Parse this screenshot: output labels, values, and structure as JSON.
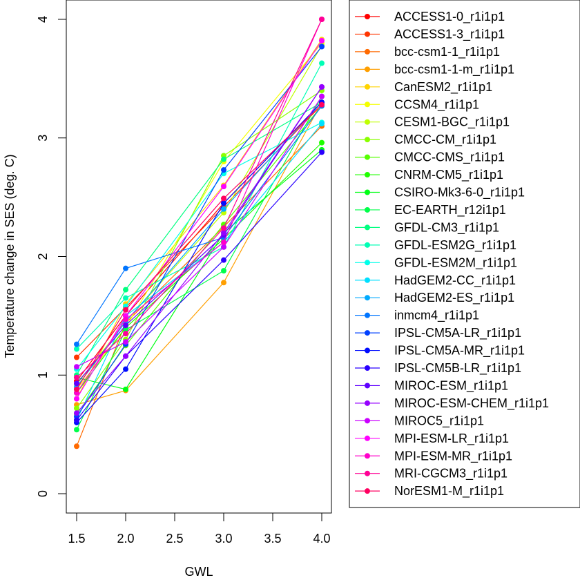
{
  "chart_data": {
    "type": "line",
    "title": "",
    "xlabel": "GWL",
    "ylabel": "Temperature change in SES (deg. C)",
    "x": [
      1.5,
      2.0,
      3.0,
      4.0
    ],
    "xlim": [
      1.4,
      4.1
    ],
    "ylim": [
      -0.1,
      4.15
    ],
    "xticks": [
      1.5,
      2.0,
      2.5,
      3.0,
      3.5,
      4.0
    ],
    "xtick_labels": [
      "1.5",
      "2.0",
      "2.5",
      "3.0",
      "3.5",
      "4.0"
    ],
    "yticks": [
      0,
      1,
      2,
      3,
      4
    ],
    "ytick_labels": [
      "0",
      "1",
      "2",
      "3",
      "4"
    ],
    "grid": false,
    "legend_position": "right",
    "series": [
      {
        "name": "ACCESS1-0_r1i1p1",
        "color": "#FF0000",
        "values": [
          0.95,
          1.5,
          2.45,
          3.3
        ]
      },
      {
        "name": "ACCESS1-3_r1i1p1",
        "color": "#FF3500",
        "values": [
          1.15,
          1.57,
          2.42,
          3.28
        ]
      },
      {
        "name": "bcc-csm1-1_r1i1p1",
        "color": "#FF6A00",
        "values": [
          0.4,
          1.44,
          2.25,
          3.1
        ]
      },
      {
        "name": "bcc-csm1-1-m_r1i1p1",
        "color": "#FF9F00",
        "values": [
          0.75,
          0.87,
          1.78,
          3.3
        ]
      },
      {
        "name": "CanESM2_r1i1p1",
        "color": "#FFD400",
        "values": [
          0.8,
          1.6,
          2.6,
          3.83
        ]
      },
      {
        "name": "CCSM4_r1i1p1",
        "color": "#F4FF00",
        "values": [
          0.88,
          1.4,
          2.8,
          3.8
        ]
      },
      {
        "name": "CESM1-BGC_r1i1p1",
        "color": "#BFFF00",
        "values": [
          0.92,
          1.45,
          2.37,
          3.78
        ]
      },
      {
        "name": "CMCC-CM_r1i1p1",
        "color": "#8AFF00",
        "values": [
          0.72,
          1.3,
          2.85,
          3.4
        ]
      },
      {
        "name": "CMCC-CMS_r1i1p1",
        "color": "#55FF00",
        "values": [
          0.67,
          1.25,
          2.27,
          3.27
        ]
      },
      {
        "name": "CNRM-CM5_r1i1p1",
        "color": "#20FF00",
        "values": [
          0.85,
          1.4,
          2.15,
          2.96
        ]
      },
      {
        "name": "CSIRO-Mk3-6-0_r1i1p1",
        "color": "#00FF15",
        "values": [
          0.98,
          0.88,
          2.2,
          2.9
        ]
      },
      {
        "name": "EC-EARTH_r12i1p1",
        "color": "#00FF4A",
        "values": [
          0.54,
          1.38,
          1.88,
          3.35
        ]
      },
      {
        "name": "GFDL-CM3_r1i1p1",
        "color": "#00FF80",
        "values": [
          1.0,
          1.72,
          2.82,
          3.3
        ]
      },
      {
        "name": "GFDL-ESM2G_r1i1p1",
        "color": "#00FFB5",
        "values": [
          1.22,
          1.65,
          2.08,
          3.63
        ]
      },
      {
        "name": "GFDL-ESM2M_r1i1p1",
        "color": "#00FFEA",
        "values": [
          1.05,
          1.58,
          2.7,
          3.13
        ]
      },
      {
        "name": "HadGEM2-CC_r1i1p1",
        "color": "#00DFFF",
        "values": [
          0.62,
          1.5,
          2.12,
          3.12
        ]
      },
      {
        "name": "HadGEM2-ES_r1i1p1",
        "color": "#00AAFF",
        "values": [
          0.9,
          1.45,
          2.4,
          3.3
        ]
      },
      {
        "name": "inmcm4_r1i1p1",
        "color": "#0075FF",
        "values": [
          1.26,
          1.9,
          2.16,
          3.27
        ]
      },
      {
        "name": "IPSL-CM5A-LR_r1i1p1",
        "color": "#0040FF",
        "values": [
          0.65,
          1.26,
          2.73,
          3.77
        ]
      },
      {
        "name": "IPSL-CM5A-MR_r1i1p1",
        "color": "#000BFF",
        "values": [
          0.6,
          1.05,
          2.45,
          3.3
        ]
      },
      {
        "name": "IPSL-CM5B-LR_r1i1p1",
        "color": "#2A00FF",
        "values": [
          0.62,
          1.16,
          1.97,
          2.88
        ]
      },
      {
        "name": "MIROC-ESM_r1i1p1",
        "color": "#5F00FF",
        "values": [
          0.93,
          1.42,
          2.18,
          3.43
        ]
      },
      {
        "name": "MIROC-ESM-CHEM_r1i1p1",
        "color": "#9500FF",
        "values": [
          0.68,
          1.16,
          2.2,
          3.43
        ]
      },
      {
        "name": "MIROC5_r1i1p1",
        "color": "#CA00FF",
        "values": [
          1.07,
          1.28,
          2.08,
          3.35
        ]
      },
      {
        "name": "MPI-ESM-LR_r1i1p1",
        "color": "#FF00FF",
        "values": [
          0.8,
          1.5,
          2.59,
          3.82
        ]
      },
      {
        "name": "MPI-ESM-MR_r1i1p1",
        "color": "#FF00CA",
        "values": [
          0.85,
          1.47,
          2.12,
          4.0
        ]
      },
      {
        "name": "MRI-CGCM3_r1i1p1",
        "color": "#FF0095",
        "values": [
          0.98,
          1.35,
          2.24,
          4.0
        ]
      },
      {
        "name": "NorESM1-M_r1i1p1",
        "color": "#FF0060",
        "values": [
          0.88,
          1.55,
          2.49,
          3.28
        ]
      }
    ]
  }
}
